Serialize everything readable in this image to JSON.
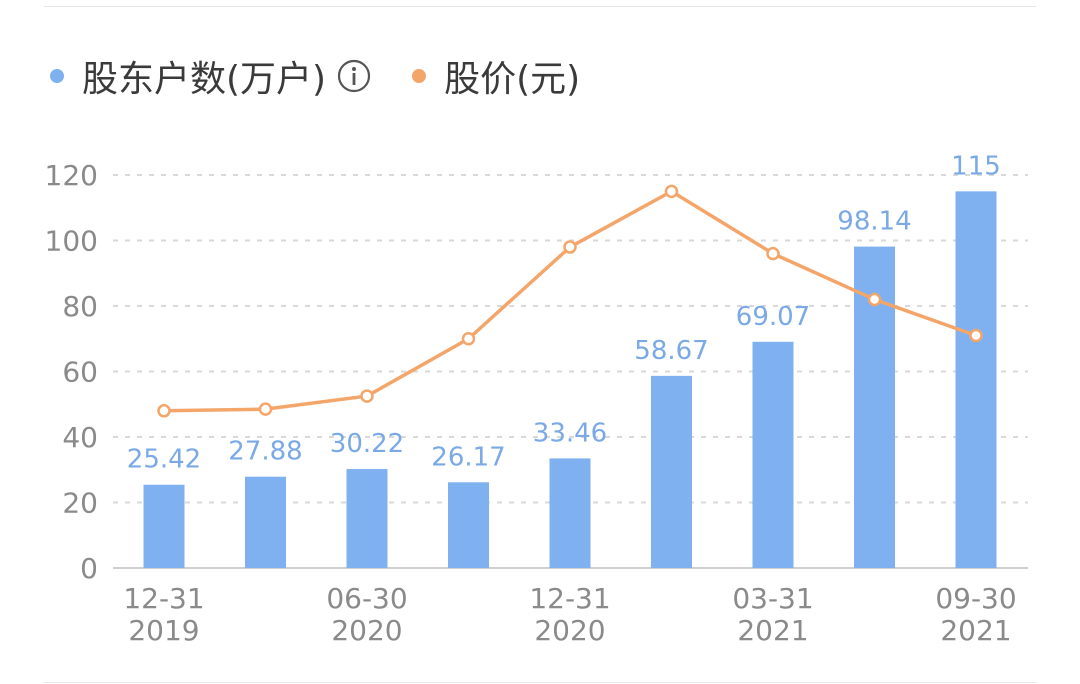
{
  "legend": {
    "series1_label": "股东户数(万户)",
    "series2_label": "股价(元)",
    "info_icon": "info-circle-icon"
  },
  "colors": {
    "bar": "#7fb0f0",
    "line": "#f4a56a",
    "label": "#7aa9e6",
    "grid": "#d9d9d9",
    "axis": "#cfcfcf",
    "tick": "#8a8a8a"
  },
  "chart_data": {
    "type": "bar",
    "ylim": [
      0,
      120
    ],
    "yticks": [
      0,
      20,
      40,
      60,
      80,
      100,
      120
    ],
    "grid": true,
    "legend_position": "top-left",
    "x_tick_labels": [
      {
        "index": 0,
        "line1": "12-31",
        "line2": "2019"
      },
      {
        "index": 2,
        "line1": "06-30",
        "line2": "2020"
      },
      {
        "index": 4,
        "line1": "12-31",
        "line2": "2020"
      },
      {
        "index": 6,
        "line1": "03-31",
        "line2": "2021"
      },
      {
        "index": 8,
        "line1": "09-30",
        "line2": "2021"
      }
    ],
    "series": [
      {
        "name": "股东户数(万户)",
        "type": "bar",
        "values": [
          25.42,
          27.88,
          30.22,
          26.17,
          33.46,
          58.67,
          69.07,
          98.14,
          115
        ],
        "labels": [
          "25.42",
          "27.88",
          "30.22",
          "26.17",
          "33.46",
          "58.67",
          "69.07",
          "98.14",
          "115"
        ]
      },
      {
        "name": "股价(元)",
        "type": "line",
        "values": [
          48,
          48.5,
          52.5,
          70,
          98,
          115,
          96,
          82,
          71
        ]
      }
    ]
  }
}
